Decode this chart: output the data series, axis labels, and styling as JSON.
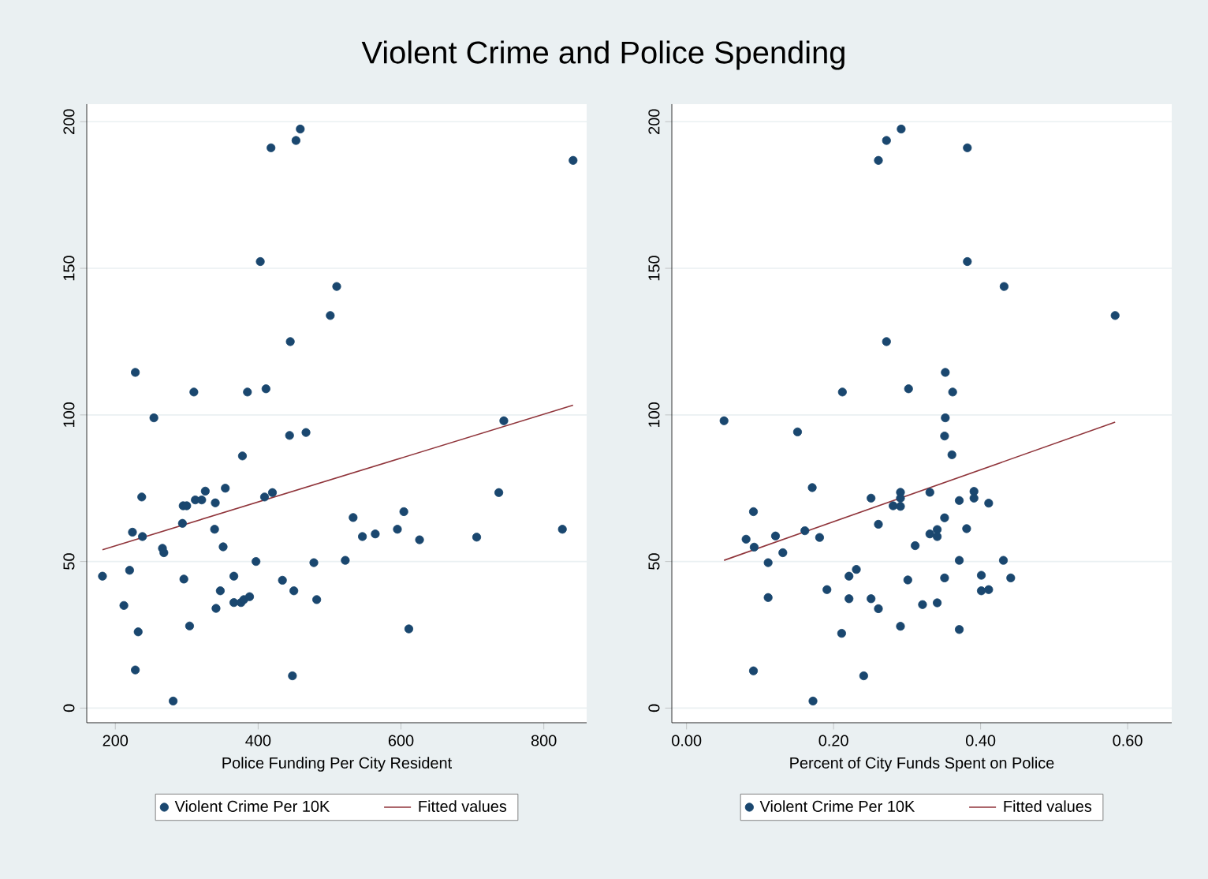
{
  "chart_data": [
    {
      "type": "scatter",
      "title": "Violent Crime and Police Spending",
      "xlabel": "Police Funding Per City Resident",
      "xlim": [
        160,
        860
      ],
      "xticks": [
        200,
        400,
        600,
        800
      ],
      "ylim": [
        -5,
        206
      ],
      "yticks": [
        0,
        50,
        100,
        150,
        200
      ],
      "grid": "y",
      "legend": "bottom",
      "series": [
        {
          "name": "Violent Crime Per 10K",
          "marker": "circle",
          "color": "#1a476f",
          "x": [
            182,
            212,
            220,
            224,
            228,
            232,
            237,
            238,
            266,
            268,
            281,
            294,
            295,
            296,
            300,
            304,
            312,
            321,
            326,
            339,
            340,
            341,
            347,
            351,
            354,
            366,
            366,
            376,
            380,
            388,
            378,
            397,
            409,
            420,
            434,
            444,
            450,
            467,
            478,
            482,
            522,
            533,
            546,
            564,
            595,
            604,
            611,
            626,
            706,
            737,
            826,
            448,
            228,
            254,
            310,
            385,
            411,
            403,
            418,
            453,
            459,
            445,
            501,
            510,
            841,
            744
          ],
          "values": [
            45,
            35,
            47,
            60,
            13,
            26,
            72,
            58.5,
            54.5,
            53,
            2.4,
            63,
            69,
            44,
            69,
            28,
            71,
            71,
            74,
            61,
            70,
            34,
            40,
            55,
            75,
            45,
            36,
            36,
            37,
            38,
            86,
            50,
            72,
            73.5,
            43.6,
            93,
            40,
            94,
            49.6,
            37,
            50.4,
            65,
            58.5,
            59.4,
            61,
            67,
            27,
            57.4,
            58.3,
            73.5,
            61,
            11,
            114.5,
            99,
            107.8,
            107.8,
            108.9,
            152.3,
            191.1,
            193.6,
            197.5,
            125,
            133.9,
            143.8,
            186.8,
            98
          ]
        },
        {
          "type": "line",
          "name": "Fitted values",
          "color": "#90353b",
          "x": [
            182,
            841
          ],
          "values": [
            54,
            103.3
          ]
        }
      ]
    },
    {
      "type": "scatter",
      "xlabel": "Percent of City Funds Spent on Police",
      "xlim": [
        -0.02,
        0.66
      ],
      "xticks": [
        {
          "value": 0,
          "label": "0.00"
        },
        {
          "value": 0.2,
          "label": "0.20"
        },
        {
          "value": 0.4,
          "label": "0.40"
        },
        {
          "value": 0.6,
          "label": "0.60"
        }
      ],
      "ylim": [
        -5,
        206
      ],
      "yticks": [
        0,
        50,
        100,
        150,
        200
      ],
      "grid": "y",
      "legend": "bottom",
      "series": [
        {
          "name": "Violent Crime Per 10K",
          "marker": "circle",
          "color": "#1a476f",
          "x": [
            0.081,
            0.091,
            0.092,
            0.091,
            0.111,
            0.111,
            0.121,
            0.131,
            0.151,
            0.161,
            0.171,
            0.172,
            0.181,
            0.191,
            0.211,
            0.221,
            0.221,
            0.231,
            0.241,
            0.251,
            0.251,
            0.261,
            0.261,
            0.281,
            0.291,
            0.291,
            0.291,
            0.291,
            0.301,
            0.311,
            0.321,
            0.331,
            0.331,
            0.341,
            0.341,
            0.341,
            0.351,
            0.351,
            0.351,
            0.361,
            0.371,
            0.371,
            0.371,
            0.381,
            0.391,
            0.391,
            0.401,
            0.401,
            0.411,
            0.411,
            0.431,
            0.441,
            0.051,
            0.212,
            0.272,
            0.261,
            0.272,
            0.292,
            0.302,
            0.352,
            0.352,
            0.362,
            0.382,
            0.382,
            0.432,
            0.583
          ],
          "values": [
            57.6,
            67,
            54.9,
            12.7,
            49.6,
            37.7,
            58.7,
            53,
            94.2,
            60.5,
            75.2,
            2.4,
            58.2,
            40.4,
            25.5,
            45,
            37.3,
            47.3,
            11,
            71.6,
            37.3,
            62.7,
            33.9,
            69,
            73.6,
            71.6,
            68.8,
            27.9,
            43.7,
            55.4,
            35.3,
            73.6,
            59.4,
            60.9,
            58.5,
            35.9,
            92.8,
            64.9,
            44.4,
            86.4,
            70.8,
            50.4,
            26.8,
            61.2,
            73.9,
            71.6,
            45.3,
            40,
            40.4,
            69.9,
            50.4,
            44.4,
            98,
            107.8,
            125,
            186.8,
            193.6,
            197.5,
            108.9,
            114.5,
            99,
            107.8,
            191.1,
            152.3,
            143.8,
            133.9
          ]
        },
        {
          "type": "line",
          "name": "Fitted values",
          "color": "#90353b",
          "x": [
            0.051,
            0.583
          ],
          "values": [
            50.4,
            97.5
          ]
        }
      ]
    }
  ]
}
